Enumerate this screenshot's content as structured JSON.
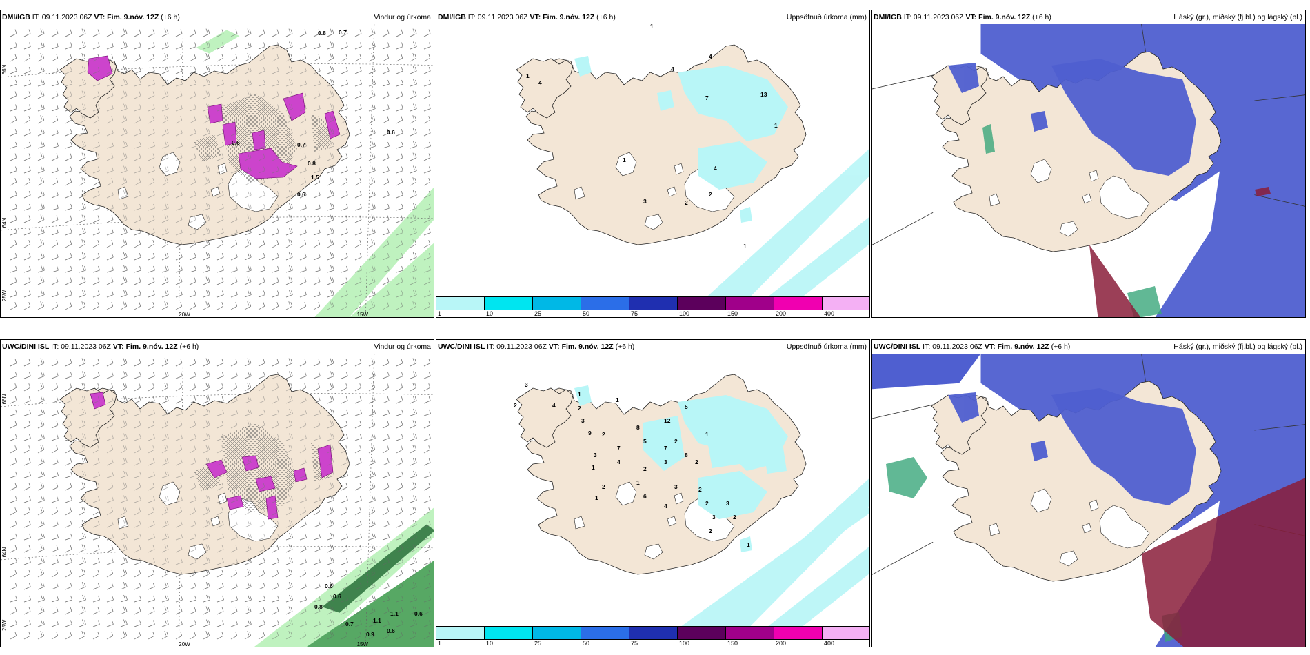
{
  "panels": [
    {
      "model": "DMI/IGB",
      "it_label": "IT:",
      "it_value": "09.11.2023 06Z",
      "vt_label": "VT:",
      "vt_value": "Fim. 9.nóv. 12Z",
      "lead": "(+6 h)",
      "field": "Vindur og úrkoma",
      "kind": "wind"
    },
    {
      "model": "DMI/IGB",
      "it_label": "IT:",
      "it_value": "09.11.2023 06Z",
      "vt_label": "VT:",
      "vt_value": "Fim. 9.nóv. 12Z",
      "lead": "(+6 h)",
      "field": "Uppsöfnuð úrkoma (mm)",
      "kind": "precip"
    },
    {
      "model": "DMI/IGB",
      "it_label": "IT:",
      "it_value": "09.11.2023 06Z",
      "vt_label": "VT:",
      "vt_value": "Fim. 9.nóv. 12Z",
      "lead": "(+6 h)",
      "field": "Háský (gr.), miðský (fj.bl.) og lágský (bl.)",
      "kind": "cloud"
    },
    {
      "model": "UWC/DINI ISL",
      "it_label": "IT:",
      "it_value": "09.11.2023 06Z",
      "vt_label": "VT:",
      "vt_value": "Fim. 9.nóv. 12Z",
      "lead": "(+6 h)",
      "field": "Vindur og úrkoma",
      "kind": "wind"
    },
    {
      "model": "UWC/DINI ISL",
      "it_label": "IT:",
      "it_value": "09.11.2023 06Z",
      "vt_label": "VT:",
      "vt_value": "Fim. 9.nóv. 12Z",
      "lead": "(+6 h)",
      "field": "Uppsöfnuð úrkoma (mm)",
      "kind": "precip"
    },
    {
      "model": "UWC/DINI ISL",
      "it_label": "IT:",
      "it_value": "09.11.2023 06Z",
      "vt_label": "VT:",
      "vt_value": "Fim. 9.nóv. 12Z",
      "lead": "(+6 h)",
      "field": "Háský (gr.), miðský (fj.bl.) og lágský (bl.)",
      "kind": "cloud"
    }
  ],
  "axis_labels": {
    "lat_top": "66N",
    "lat_bottom": "64N",
    "lon_left": "20W",
    "lon_right": "15W",
    "lon_far": "25W"
  },
  "colorbar": {
    "labels": [
      "1",
      "10",
      "25",
      "50",
      "75",
      "100",
      "150",
      "200",
      "400"
    ],
    "colors": [
      "#b8f6f7",
      "#00e5f0",
      "#00b8e6",
      "#2b6ee8",
      "#1f2fb0",
      "#5c005c",
      "#a0008a",
      "#f000b0",
      "#f4b0f4"
    ]
  },
  "precip_values_top": [
    "1",
    "4",
    "1",
    "4",
    "7",
    "4",
    "13",
    "4",
    "1",
    "2",
    "1",
    "3",
    "1",
    "2"
  ],
  "precip_values_bottom": [
    "3",
    "2",
    "4",
    "1",
    "2",
    "3",
    "9",
    "1",
    "2",
    "7",
    "4",
    "3",
    "1",
    "8",
    "2",
    "1",
    "1",
    "2",
    "5",
    "12",
    "7",
    "3",
    "2",
    "5",
    "6",
    "4",
    "3",
    "8",
    "2",
    "1",
    "2",
    "2",
    "3",
    "2",
    "3",
    "2",
    "1"
  ],
  "wind_values_top": [
    "0.7",
    "0.8",
    "0.6",
    "0.7",
    "0.6",
    "0.8",
    "1.5",
    "0.6"
  ],
  "wind_values_bottom": [
    "0.6",
    "0.8",
    "0.6",
    "0.7",
    "1.1",
    "0.9",
    "0.6",
    "1.1",
    "0.6"
  ],
  "colors": {
    "land": "#f3e6d6",
    "snowfree": "#ffffff",
    "precip_pink": "#cc44cc",
    "precip_green": "#b4f0b4",
    "cloud_high": "#4f5fd0",
    "cloud_low": "#8a1d3a",
    "cloud_green": "#3aa67a"
  }
}
